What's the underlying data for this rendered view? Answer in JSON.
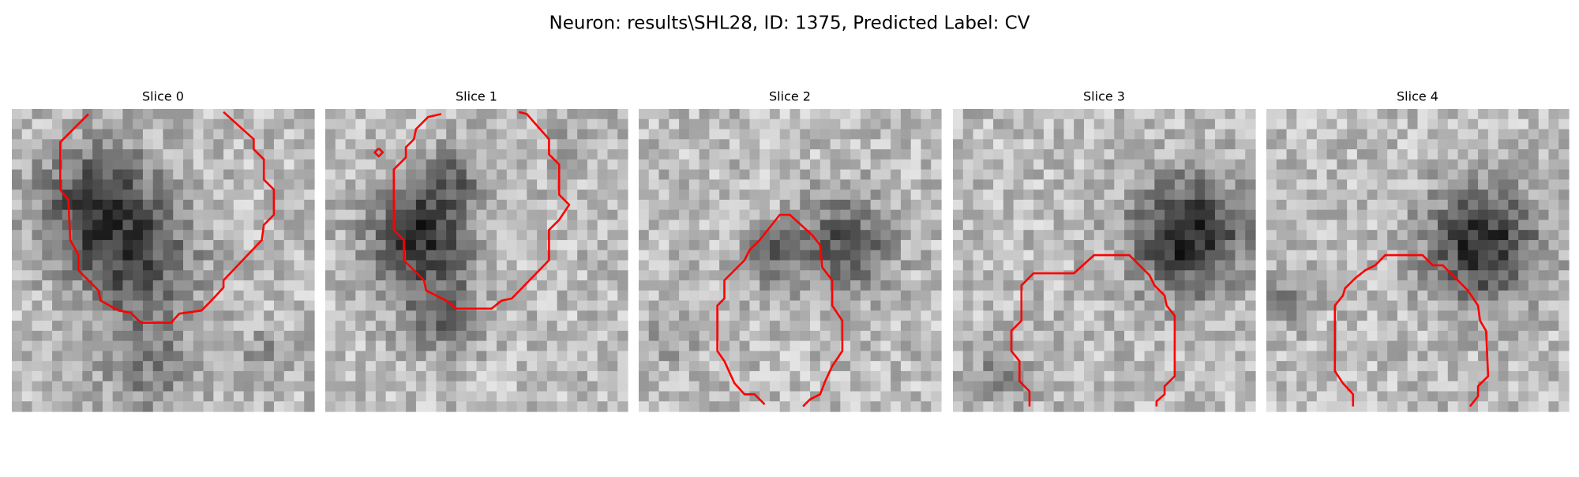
{
  "title": "Neuron: results\\SHL28, ID: 1375, Predicted Label: CV",
  "panels": [
    {
      "title": "Slice 0"
    },
    {
      "title": "Slice 1"
    },
    {
      "title": "Slice 2"
    },
    {
      "title": "Slice 3"
    },
    {
      "title": "Slice 4"
    }
  ]
}
